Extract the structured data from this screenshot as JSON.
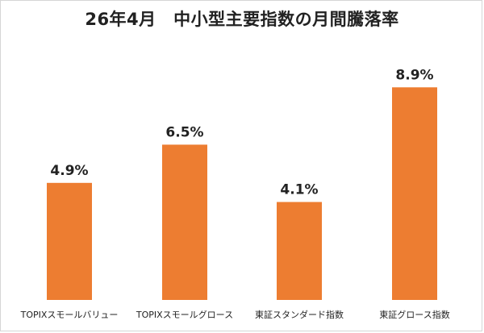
{
  "chart_data": {
    "type": "bar",
    "title": "26年4月　中小型主要指数の月間騰落率",
    "categories": [
      "TOPIXスモールバリュー",
      "TOPIXスモールグロース",
      "東証スタンダード指数",
      "東証グロース指数"
    ],
    "values": [
      4.9,
      6.5,
      4.1,
      8.9
    ],
    "data_labels": [
      "4.9%",
      "6.5%",
      "4.1%",
      "8.9%"
    ],
    "xlabel": "",
    "ylabel": "",
    "ylim": [
      0,
      9.45
    ],
    "grid": false,
    "legend": "none",
    "bar_color": "#ED7D31"
  }
}
